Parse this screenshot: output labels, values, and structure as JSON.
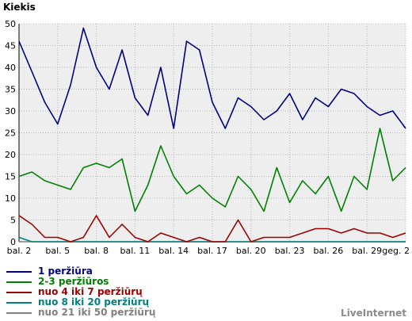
{
  "chart_data": {
    "type": "line",
    "ylabel": "Kiekis",
    "xlabel": "",
    "ylim": [
      0,
      50
    ],
    "yticks": [
      0,
      5,
      10,
      15,
      20,
      25,
      30,
      35,
      40,
      45,
      50
    ],
    "xticks": [
      "bal. 2",
      "bal. 5",
      "bal. 8",
      "bal. 11",
      "bal. 14",
      "bal. 17",
      "bal. 20",
      "bal. 23",
      "bal. 26",
      "bal. 29",
      "geg. 2"
    ],
    "xtick_positions": [
      0,
      3,
      6,
      9,
      12,
      15,
      18,
      21,
      24,
      27,
      30
    ],
    "x_count": 31,
    "grid": true,
    "background": "#eeeeee",
    "legend_position": "bottom-left",
    "series": [
      {
        "name": "1 peržiūra",
        "color": "#000080",
        "values": [
          46,
          39,
          32,
          27,
          36,
          49,
          40,
          35,
          44,
          33,
          29,
          40,
          26,
          46,
          44,
          32,
          26,
          33,
          31,
          28,
          30,
          34,
          28,
          33,
          31,
          35,
          34,
          31,
          29,
          30,
          26
        ]
      },
      {
        "name": "2-3 peržiūros",
        "color": "#008000",
        "values": [
          15,
          16,
          14,
          13,
          12,
          17,
          18,
          17,
          19,
          7,
          13,
          22,
          15,
          11,
          13,
          10,
          8,
          15,
          12,
          7,
          17,
          9,
          14,
          11,
          15,
          7,
          15,
          12,
          26,
          14,
          17
        ]
      },
      {
        "name": "nuo 4 iki 7 peržiūrų",
        "color": "#a00000",
        "values": [
          6,
          4,
          1,
          1,
          0,
          1,
          6,
          1,
          4,
          1,
          0,
          2,
          1,
          0,
          1,
          0,
          0,
          5,
          0,
          1,
          1,
          1,
          2,
          3,
          3,
          2,
          3,
          2,
          2,
          1,
          2
        ]
      },
      {
        "name": "nuo 8 iki 20 peržiūrų",
        "color": "#008080",
        "values": [
          1,
          0,
          0,
          0,
          0,
          0,
          0,
          0,
          0,
          0,
          0,
          0,
          0,
          0,
          0,
          0,
          0,
          0,
          0,
          0,
          0,
          0,
          0,
          0,
          0,
          0,
          0,
          0,
          0,
          0,
          0
        ]
      },
      {
        "name": "nuo 21 iki 50 peržiūrų",
        "color": "#808080",
        "values": [
          0,
          0,
          0,
          0,
          0,
          0,
          0,
          0,
          0,
          0,
          0,
          0,
          0,
          0,
          0,
          0,
          0,
          0,
          0,
          0,
          0,
          0,
          0,
          0,
          0,
          0,
          0,
          0,
          0,
          0,
          0
        ]
      }
    ]
  },
  "brand": "LiveInternet"
}
